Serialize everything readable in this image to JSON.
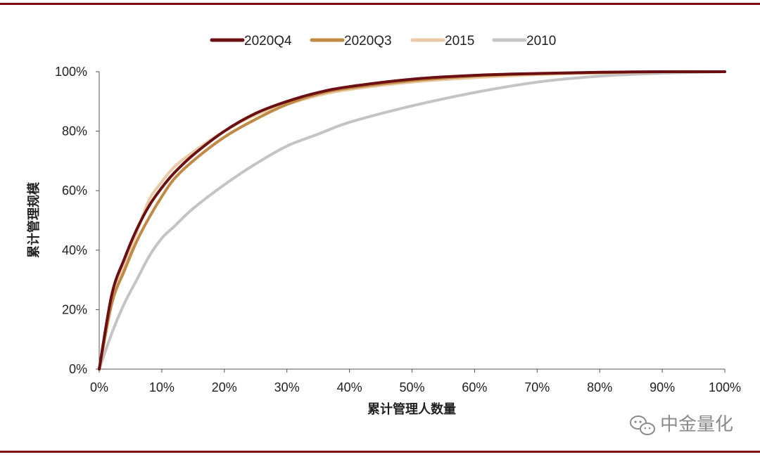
{
  "chart_data": {
    "type": "line",
    "xlabel": "累计管理人数量",
    "ylabel": "累计管理规模",
    "xlim": [
      0,
      100
    ],
    "ylim": [
      0,
      100
    ],
    "x_ticks": [
      "0%",
      "10%",
      "20%",
      "30%",
      "40%",
      "50%",
      "60%",
      "70%",
      "80%",
      "90%",
      "100%"
    ],
    "y_ticks": [
      "0%",
      "20%",
      "40%",
      "60%",
      "80%",
      "100%"
    ],
    "grid": false,
    "legend_position": "top",
    "series": [
      {
        "name": "2020Q4",
        "color": "#6b0f12",
        "x": [
          0,
          2,
          4,
          6,
          8,
          10,
          12,
          15,
          20,
          25,
          30,
          35,
          40,
          50,
          60,
          70,
          80,
          90,
          100
        ],
        "y": [
          0,
          25,
          37,
          47,
          55,
          61,
          66,
          72,
          80,
          86,
          90,
          93,
          95,
          97.5,
          98.8,
          99.4,
          99.8,
          100,
          100
        ]
      },
      {
        "name": "2020Q3",
        "color": "#c08a45",
        "x": [
          0,
          2,
          4,
          6,
          8,
          10,
          12,
          15,
          20,
          25,
          30,
          35,
          40,
          50,
          60,
          70,
          80,
          90,
          100
        ],
        "y": [
          0,
          22,
          33,
          43,
          51,
          58,
          64,
          70,
          78,
          84,
          89,
          92.5,
          94.5,
          97,
          98.5,
          99.3,
          99.7,
          100,
          100
        ]
      },
      {
        "name": "2015",
        "color": "#e9cba7",
        "x": [
          0,
          2,
          4,
          6,
          8,
          10,
          12,
          15,
          20,
          25,
          30,
          35,
          40,
          50,
          60,
          70,
          80,
          90,
          100
        ],
        "y": [
          0,
          22,
          35,
          46,
          57,
          63,
          68,
          73,
          80,
          85.5,
          89,
          92,
          94,
          96.5,
          98,
          99,
          99.6,
          100,
          100
        ]
      },
      {
        "name": "2010",
        "color": "#c4c4c4",
        "x": [
          0,
          2,
          4,
          6,
          8,
          10,
          12,
          15,
          20,
          25,
          30,
          35,
          40,
          50,
          60,
          70,
          80,
          90,
          100
        ],
        "y": [
          0,
          12,
          22,
          30,
          38,
          44,
          48,
          54,
          62,
          69,
          75,
          79,
          83,
          88.5,
          93,
          96.5,
          98.5,
          99.5,
          100
        ]
      }
    ]
  },
  "watermark": {
    "text": "中金量化",
    "icon": "wechat-icon"
  },
  "frame": {
    "rule_color": "#7a0c14"
  }
}
